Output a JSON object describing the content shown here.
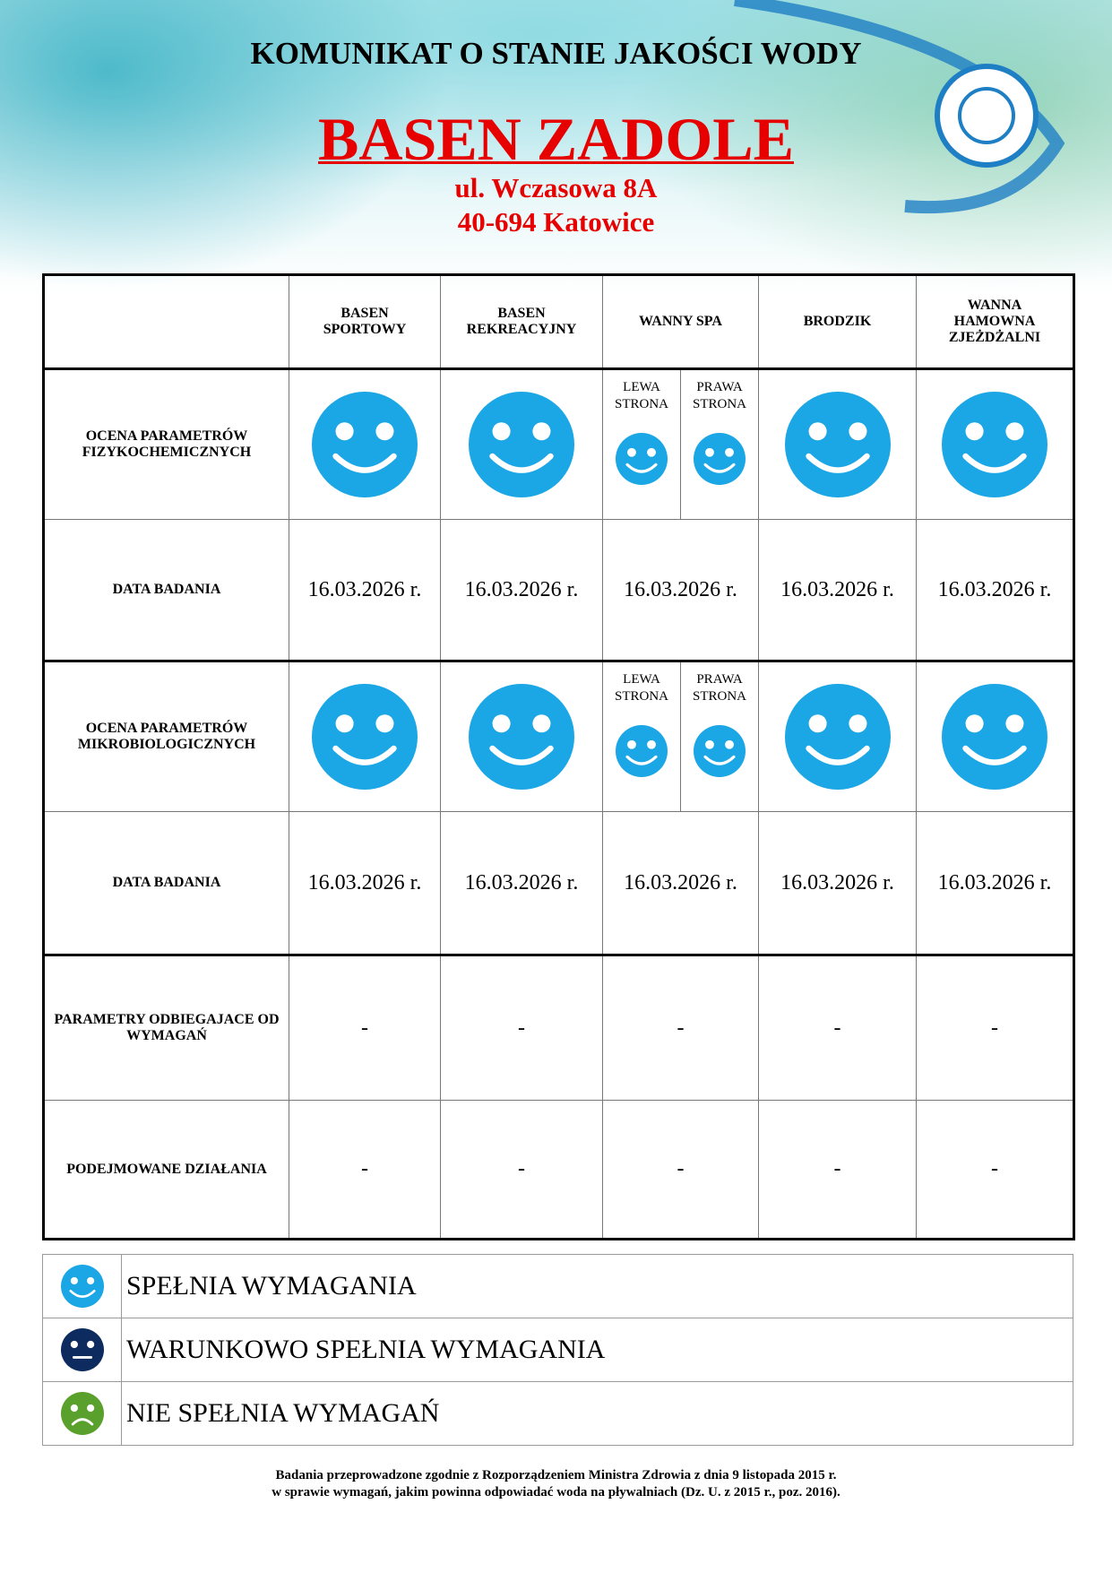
{
  "header": {
    "title": "KOMUNIKAT O STANIE JAKOŚCI WODY",
    "name": "BASEN ZADOLE",
    "address": [
      "ul. Wczasowa 8A",
      "40-694 Katowice"
    ]
  },
  "table": {
    "columns": [
      "BASEN SPORTOWY",
      "BASEN REKREACYJNY",
      "WANNY SPA",
      "BRODZIK",
      "WANNA HAMOWNA ZJEŻDŻALNI"
    ],
    "sides": [
      "LEWA STRONA",
      "PRAWA STRONA"
    ],
    "physchem": {
      "label": "OCENA PARAMETRÓW FIZYKOCHEMICZNYCH",
      "date_label": "DATA BADANIA",
      "dates": [
        "16.03.2026 r.",
        "16.03.2026 r.",
        "16.03.2026 r.",
        "16.03.2026 r.",
        "16.03.2026 r."
      ]
    },
    "micro": {
      "label": "OCENA PARAMETRÓW MIKROBIOLOGICZNYCH",
      "date_label": "DATA BADANIA",
      "dates": [
        "16.03.2026 r.",
        "16.03.2026 r.",
        "16.03.2026 r.",
        "16.03.2026 r.",
        "16.03.2026 r."
      ]
    },
    "deviations": {
      "label": "PARAMETRY ODBIEGAJACE OD WYMAGAŃ",
      "values": [
        "-",
        "-",
        "-",
        "-",
        "-"
      ]
    },
    "actions": {
      "label": "PODEJMOWANE DZIAŁANIA",
      "values": [
        "-",
        "-",
        "-",
        "-",
        "-"
      ]
    }
  },
  "legend": [
    "SPEŁNIA WYMAGANIA",
    "WARUNKOWO SPEŁNIA WYMAGANIA",
    "NIE SPEŁNIA WYMAGAŃ"
  ],
  "footnote": [
    "Badania przeprowadzone zgodnie z Rozporządzeniem Ministra Zdrowia z dnia 9 listopada 2015 r.",
    "w sprawie wymagań, jakim powinna odpowiadać woda na pływalniach (Dz. U. z 2015 r., poz. 2016)."
  ]
}
